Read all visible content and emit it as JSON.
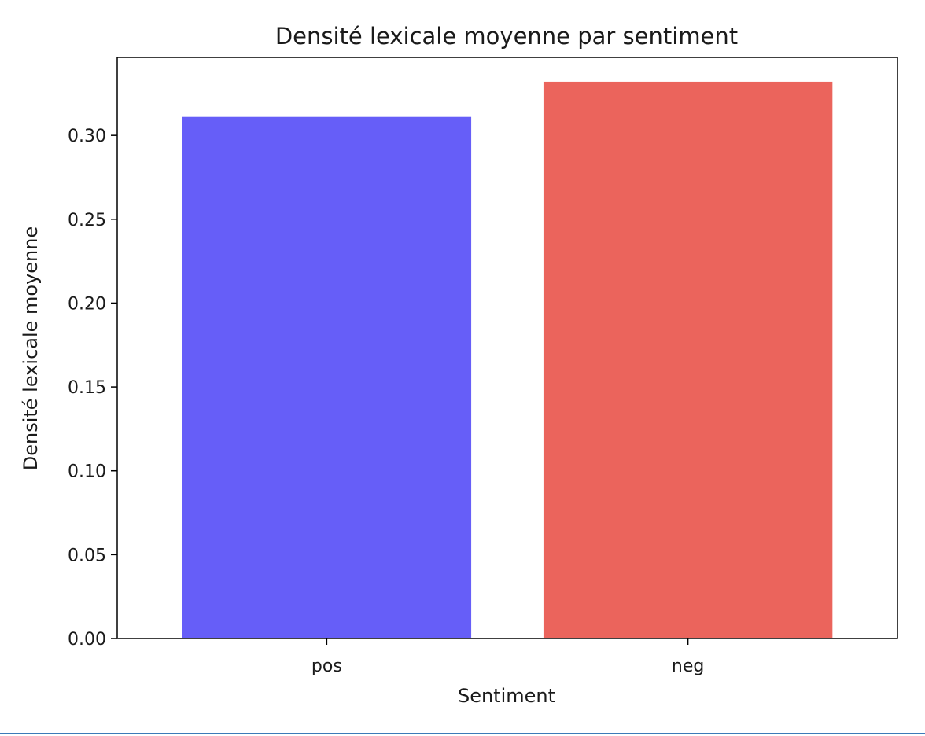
{
  "chart_data": {
    "type": "bar",
    "title": "Densité lexicale moyenne par sentiment",
    "xlabel": "Sentiment",
    "ylabel": "Densité lexicale moyenne",
    "categories": [
      "pos",
      "neg"
    ],
    "values": [
      0.311,
      0.332
    ],
    "colors": [
      "#665ef8",
      "#eb645c"
    ],
    "ylim": [
      0,
      0.3465
    ],
    "yticks": [
      0.0,
      0.05,
      0.1,
      0.15,
      0.2,
      0.25,
      0.3
    ],
    "ytick_labels": [
      "0.00",
      "0.05",
      "0.10",
      "0.15",
      "0.20",
      "0.25",
      "0.30"
    ],
    "grid": false,
    "legend": "none"
  }
}
